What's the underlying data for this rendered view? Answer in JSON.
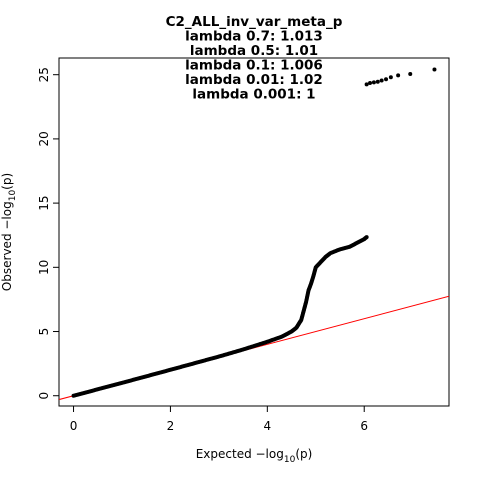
{
  "chart_data": {
    "type": "scatter",
    "title_lines": [
      "C2_ALL_inv_var_meta_p",
      "lambda 0.7: 1.013",
      "lambda 0.5: 1.01",
      "lambda 0.1: 1.006",
      "lambda 0.01: 1.02",
      "lambda 0.001: 1"
    ],
    "xlabel": {
      "prefix": "Expected  −log",
      "sub": "10",
      "suffix": "(p)"
    },
    "ylabel": {
      "prefix": "Observed  −log",
      "sub": "10",
      "suffix": "(p)"
    },
    "xlim": [
      -0.3,
      7.75
    ],
    "ylim": [
      -0.8,
      26.3
    ],
    "x_ticks": [
      0,
      2,
      4,
      6
    ],
    "y_ticks": [
      0,
      5,
      10,
      15,
      20,
      25
    ],
    "reference_line": {
      "slope": 1,
      "intercept": 0,
      "color": "#ff0000"
    },
    "point_color": "#000000",
    "curve_points": [
      [
        0,
        0
      ],
      [
        1,
        1.0
      ],
      [
        2,
        2.02
      ],
      [
        3,
        3.05
      ],
      [
        3.5,
        3.6
      ],
      [
        4,
        4.2
      ],
      [
        4.3,
        4.6
      ],
      [
        4.5,
        5.0
      ],
      [
        4.6,
        5.3
      ],
      [
        4.7,
        5.9
      ],
      [
        4.75,
        6.6
      ],
      [
        4.8,
        7.3
      ],
      [
        4.85,
        8.2
      ],
      [
        4.9,
        8.7
      ],
      [
        4.95,
        9.3
      ],
      [
        5.0,
        10.0
      ],
      [
        5.1,
        10.4
      ],
      [
        5.2,
        10.8
      ],
      [
        5.3,
        11.1
      ],
      [
        5.5,
        11.4
      ],
      [
        5.7,
        11.6
      ],
      [
        5.85,
        11.9
      ],
      [
        6.0,
        12.2
      ],
      [
        6.05,
        12.35
      ]
    ],
    "outlier_points": [
      [
        6.05,
        24.25
      ],
      [
        6.12,
        24.35
      ],
      [
        6.2,
        24.4
      ],
      [
        6.28,
        24.45
      ],
      [
        6.36,
        24.55
      ],
      [
        6.45,
        24.65
      ],
      [
        6.55,
        24.8
      ],
      [
        6.7,
        24.95
      ],
      [
        6.95,
        25.05
      ],
      [
        7.45,
        25.4
      ]
    ]
  }
}
